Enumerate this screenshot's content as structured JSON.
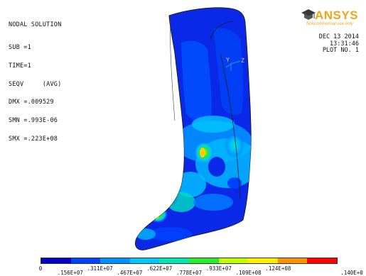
{
  "info": {
    "title": "NODAL SOLUTION",
    "lines": [
      "SUB =1",
      "TIME=1",
      "SEQV     (AVG)",
      "DMX =.009529",
      "SMN =.993E-06",
      "SMX =.223E+08"
    ]
  },
  "logo": {
    "brand": "ANSYS",
    "tagline": "Noncommercial use only"
  },
  "header": {
    "date": "DEC 13 2014",
    "time": "13:31:46",
    "plot": "PLOT NO.   1"
  },
  "triad": {
    "y_label": "Y",
    "z_label": "Z"
  },
  "legend": {
    "colors": [
      "#0000c8",
      "#0040ff",
      "#0090ff",
      "#00c8ff",
      "#00e8b0",
      "#28f028",
      "#c0ff00",
      "#ffee00",
      "#ff9000",
      "#ff0000"
    ],
    "labels_top": [
      "0",
      ".311E+07",
      ".622E+07",
      ".933E+07",
      ".124E+08"
    ],
    "labels_bottom": [
      ".156E+07",
      ".467E+07",
      ".778E+07",
      ".109E+08",
      ".140E+0"
    ]
  }
}
